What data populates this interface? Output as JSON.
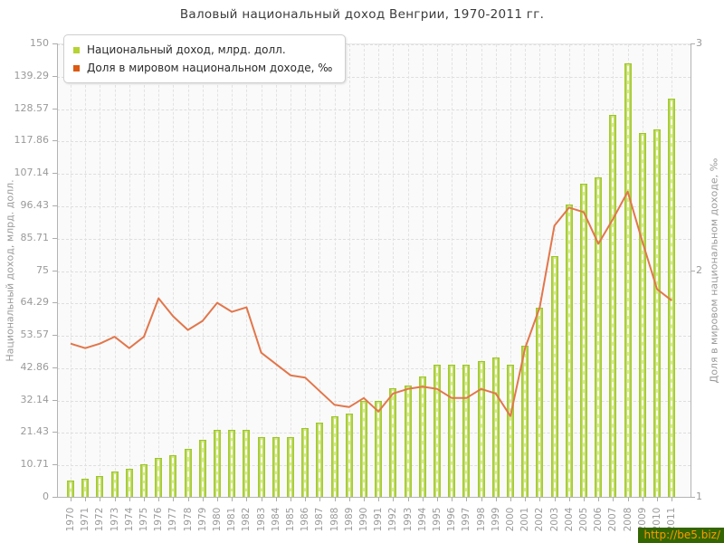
{
  "title": "Валовый национальный доход Венгрии, 1970-2011 гг.",
  "legend": {
    "items": [
      {
        "label": "Национальный доход, млрд. долл.",
        "color": "#b5d333"
      },
      {
        "label": "Доля в мировом национальном доходе, ‰",
        "color": "#dd5a12"
      }
    ]
  },
  "watermark": {
    "text": "http://be5.biz/",
    "bg_color": "#336600",
    "text_color": "#ff9900"
  },
  "chart_data": {
    "type": "bar",
    "title": "Валовый национальный доход Венгрии, 1970-2011 гг.",
    "grid": true,
    "legend_position": "top-left",
    "plot_bg": "#fafafa",
    "categories": [
      "1970",
      "1971",
      "1972",
      "1973",
      "1974",
      "1975",
      "1976",
      "1977",
      "1978",
      "1979",
      "1980",
      "1981",
      "1982",
      "1983",
      "1984",
      "1985",
      "1986",
      "1987",
      "1988",
      "1989",
      "1990",
      "1991",
      "1992",
      "1993",
      "1994",
      "1995",
      "1996",
      "1997",
      "1998",
      "1999",
      "2000",
      "2001",
      "2002",
      "2003",
      "2004",
      "2005",
      "2006",
      "2007",
      "2008",
      "2009",
      "2010",
      "2011"
    ],
    "series": [
      {
        "name": "Национальный доход, млрд. долл.",
        "type": "bar",
        "axis": "left",
        "color": "#b9d94f",
        "values": [
          5.3,
          5.9,
          7,
          8.4,
          9.3,
          10.7,
          12.9,
          13.9,
          16,
          18.9,
          22.1,
          22.1,
          22.2,
          19.9,
          19.7,
          19.7,
          22.9,
          24.7,
          26.6,
          27.6,
          31.8,
          31.8,
          35.8,
          36.9,
          39.8,
          43.8,
          43.8,
          43.8,
          44.9,
          46,
          43.8,
          49.9,
          62.6,
          79.7,
          96.8,
          103.5,
          105.7,
          126.4,
          143.4,
          120.4,
          121.6,
          131.6
        ]
      },
      {
        "name": "Доля в мировом национальном доходе, ‰",
        "type": "line",
        "axis": "right",
        "color": "#e2764b",
        "values": [
          1.68,
          1.66,
          1.68,
          1.71,
          1.66,
          1.71,
          1.88,
          1.8,
          1.74,
          1.78,
          1.86,
          1.82,
          1.84,
          1.64,
          1.59,
          1.54,
          1.53,
          1.47,
          1.41,
          1.4,
          1.44,
          1.38,
          1.46,
          1.48,
          1.49,
          1.48,
          1.44,
          1.44,
          1.48,
          1.46,
          1.36,
          1.66,
          1.84,
          2.2,
          2.28,
          2.26,
          2.12,
          2.23,
          2.35,
          2.13,
          1.92,
          1.87
        ]
      }
    ],
    "left_axis": {
      "title": "Национальный доход, млрд. долл.",
      "range": [
        0,
        150
      ],
      "ticks": [
        "0",
        "10.71",
        "21.43",
        "32.14",
        "42.86",
        "53.57",
        "64.29",
        "75",
        "85.71",
        "96.43",
        "107.14",
        "117.86",
        "128.57",
        "139.29",
        "150"
      ]
    },
    "right_axis": {
      "title": "Доля в мировом национальном доходе, ‰",
      "range": [
        1,
        3
      ],
      "ticks": [
        "1",
        "2",
        "3"
      ]
    }
  }
}
